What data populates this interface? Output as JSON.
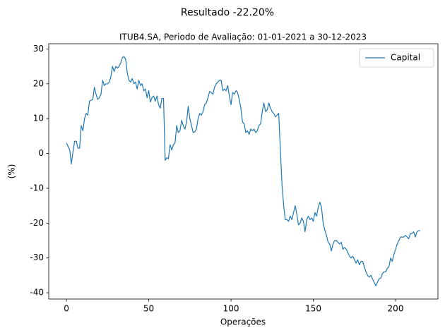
{
  "chart_data": {
    "type": "line",
    "title": "Resultado -22.20%",
    "subtitle": "ITUB4.SA, Periodo de Avaliação: 01-01-2021 a 30-12-2023",
    "xlabel": "Operações",
    "ylabel": "(%)",
    "x": [
      0,
      1,
      2,
      3,
      4,
      5,
      6,
      7,
      8,
      9,
      10,
      11,
      12,
      13,
      14,
      15,
      16,
      17,
      18,
      19,
      20,
      21,
      22,
      23,
      24,
      25,
      26,
      27,
      28,
      29,
      30,
      31,
      32,
      33,
      34,
      35,
      36,
      37,
      38,
      39,
      40,
      41,
      42,
      43,
      44,
      45,
      46,
      47,
      48,
      49,
      50,
      51,
      52,
      53,
      54,
      55,
      56,
      57,
      58,
      59,
      60,
      61,
      62,
      63,
      64,
      65,
      66,
      67,
      68,
      69,
      70,
      71,
      72,
      73,
      74,
      75,
      76,
      77,
      78,
      79,
      80,
      81,
      82,
      83,
      84,
      85,
      86,
      87,
      88,
      89,
      90,
      91,
      92,
      93,
      94,
      95,
      96,
      97,
      98,
      99,
      100,
      101,
      102,
      103,
      104,
      105,
      106,
      107,
      108,
      109,
      110,
      111,
      112,
      113,
      114,
      115,
      116,
      117,
      118,
      119,
      120,
      121,
      122,
      123,
      124,
      125,
      126,
      127,
      128,
      129,
      130,
      131,
      132,
      133,
      134,
      135,
      136,
      137,
      138,
      139,
      140,
      141,
      142,
      143,
      144,
      145,
      146,
      147,
      148,
      149,
      150,
      151,
      152,
      153,
      154,
      155,
      156,
      157,
      158,
      159,
      160,
      161,
      162,
      163,
      164,
      165,
      166,
      167,
      168,
      169,
      170,
      171,
      172,
      173,
      174,
      175,
      176,
      177,
      178,
      179,
      180,
      181,
      182,
      183,
      184,
      185,
      186,
      187,
      188,
      189,
      190,
      191,
      192,
      193,
      194,
      195,
      196,
      197,
      198,
      199,
      200,
      201,
      202,
      203,
      204,
      205,
      206,
      207,
      208,
      209,
      210,
      211,
      212,
      213,
      214,
      215
    ],
    "series": [
      {
        "name": "Capital",
        "color": "#1f77b4",
        "values": [
          3,
          2,
          1,
          -3,
          0.5,
          3.5,
          3.5,
          1.5,
          1.5,
          8,
          6.5,
          10,
          11.5,
          11,
          15,
          15.3,
          15.5,
          19,
          17,
          15.5,
          16,
          17,
          21,
          19.5,
          20,
          20,
          20.5,
          22,
          25,
          23.5,
          25,
          24.5,
          25,
          26,
          27.5,
          27.8,
          27,
          23,
          21,
          20.5,
          21.5,
          20,
          20.5,
          18.5,
          21,
          19.5,
          20,
          18,
          18.5,
          16,
          18,
          14.8,
          16,
          16.5,
          15,
          16.5,
          14,
          13,
          15.8,
          15.8,
          -2,
          -1.2,
          -1.5,
          2.5,
          1,
          2.5,
          3,
          8,
          6,
          6.5,
          9.5,
          8,
          7,
          9,
          13.5,
          10,
          8,
          6,
          6.2,
          7,
          10,
          11.5,
          11,
          12,
          14,
          14.5,
          16,
          17.8,
          17.5,
          17,
          19,
          20,
          20.5,
          21,
          21,
          18,
          18.5,
          18,
          19.5,
          16.5,
          14,
          17.5,
          17,
          18,
          17.5,
          15.5,
          13,
          9,
          8.5,
          6,
          6.5,
          5.5,
          7,
          6.5,
          7,
          6,
          6.5,
          8,
          8.5,
          12,
          14.5,
          12,
          12.5,
          14.5,
          13,
          12,
          11.5,
          10.5,
          11,
          11.5,
          1,
          -9,
          -15,
          -19,
          -19,
          -19.5,
          -18,
          -19,
          -17,
          -15,
          -17.5,
          -20.5,
          -20,
          -18.5,
          -19.5,
          -22.5,
          -19,
          -18,
          -19,
          -18.5,
          -19.5,
          -17,
          -18,
          -15.5,
          -14,
          -15.5,
          -20,
          -22,
          -23.5,
          -25.5,
          -26,
          -28,
          -26,
          -25,
          -25,
          -25.5,
          -26,
          -25.5,
          -27.5,
          -27,
          -27.5,
          -28.5,
          -29.5,
          -30,
          -29.5,
          -30.5,
          -31.5,
          -30.5,
          -32,
          -31,
          -31,
          -32.5,
          -34,
          -35,
          -35.5,
          -35,
          -36,
          -37,
          -38,
          -37,
          -36,
          -35.8,
          -34.5,
          -34,
          -34,
          -33,
          -32.5,
          -30,
          -31,
          -29,
          -27.5,
          -26,
          -25,
          -24,
          -24,
          -24,
          -23.5,
          -24,
          -24.5,
          -23,
          -23,
          -22.5,
          -24,
          -22.5,
          -22.2,
          -22.2
        ]
      }
    ],
    "xlim": [
      -10.75,
      225.75
    ],
    "xticks": [
      0,
      50,
      100,
      150,
      200
    ],
    "ylim": [
      -41.8,
      31.5
    ],
    "yticks": [
      -40,
      -30,
      -20,
      -10,
      0,
      10,
      20,
      30
    ],
    "grid": false,
    "legend": "upper right"
  }
}
